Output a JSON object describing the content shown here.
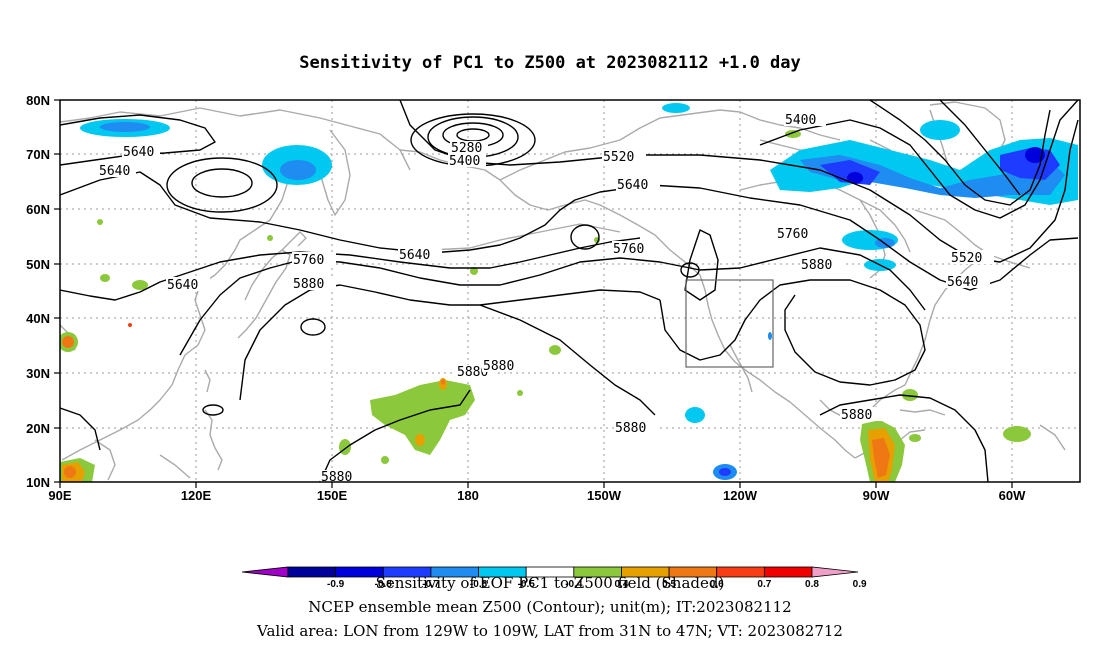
{
  "title": "Sensitivity of PC1 to Z500 at 2023082112 +1.0 day",
  "map": {
    "lon_labels": [
      "90E",
      "120E",
      "150E",
      "180",
      "150W",
      "120W",
      "90W",
      "60W"
    ],
    "lat_labels": [
      "80N",
      "70N",
      "60N",
      "50N",
      "40N",
      "30N",
      "20N",
      "10N"
    ],
    "projection": "cylindrical equidistant",
    "grid": "dotted",
    "coastline_color": "#aaaaaa",
    "contour_color": "#000000",
    "valid_box": {
      "lon_from": "129W",
      "lon_to": "109W",
      "lat_from": "31N",
      "lat_to": "47N"
    }
  },
  "contours": {
    "variable": "Z500",
    "unit": "m",
    "labels": [
      {
        "text": "5640"
      },
      {
        "text": "5640"
      },
      {
        "text": "5280"
      },
      {
        "text": "5400"
      },
      {
        "text": "5520"
      },
      {
        "text": "5640"
      },
      {
        "text": "5400"
      },
      {
        "text": "5640"
      },
      {
        "text": "5760"
      },
      {
        "text": "5760"
      },
      {
        "text": "5880"
      },
      {
        "text": "5760"
      },
      {
        "text": "5880"
      },
      {
        "text": "5640"
      },
      {
        "text": "5520"
      },
      {
        "text": "5640"
      },
      {
        "text": "5880"
      },
      {
        "text": "5880"
      },
      {
        "text": "5880"
      },
      {
        "text": "5880"
      },
      {
        "text": "5880"
      }
    ]
  },
  "colorbar": {
    "colors": [
      "#a000c8",
      "#00009b",
      "#0000dc",
      "#1e3cff",
      "#1e8cf0",
      "#00c8f0",
      "#ffffff",
      "#8cc83c",
      "#e6a000",
      "#f07814",
      "#fa3c14",
      "#f00000",
      "#f0a0c8"
    ],
    "tick_labels": [
      "-0.9",
      "-0.8",
      "-0.7",
      "-0.6",
      "-0.5",
      "-0.4",
      "0.4",
      "0.5",
      "0.6",
      "0.7",
      "0.8",
      "0.9"
    ]
  },
  "footer": {
    "line1": "Sensitivity of EOF PC1 to Z500 field (Shaded)",
    "line2": "NCEP ensemble mean Z500 (Contour); unit(m); IT:2023082112",
    "line3": "Valid area: LON from 129W to 109W, LAT from 31N to 47N; VT: 2023082712"
  }
}
